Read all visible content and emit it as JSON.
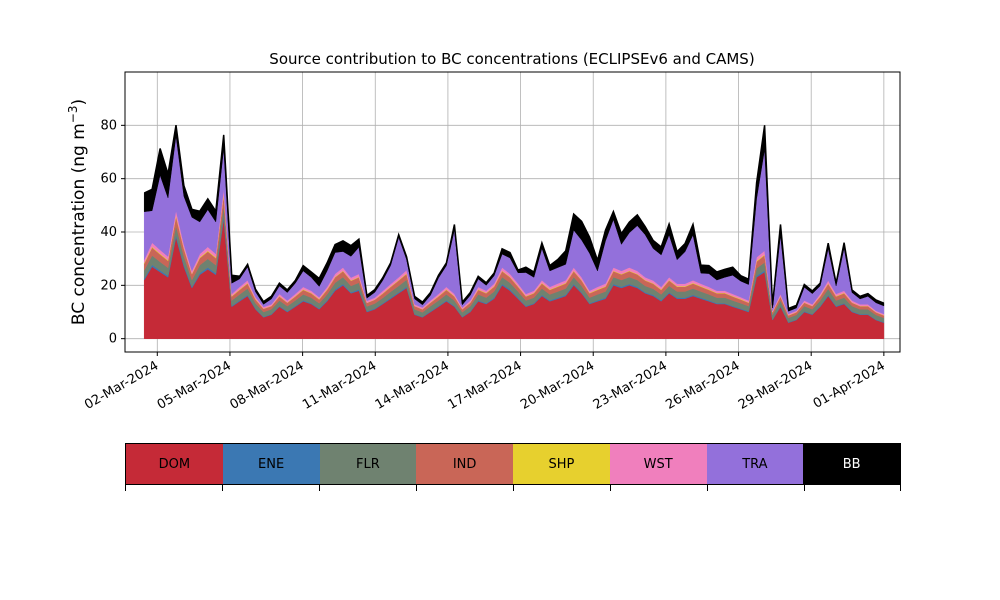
{
  "chart_data": {
    "type": "area",
    "stacked": true,
    "title": "Source contribution to BC concentrations (ECLIPSEv6 and CAMS)",
    "ylabel": "BC concentration (ng m",
    "ylabel_sup": "−3",
    "ylabel_close": ")",
    "xlabel": "",
    "xlim": [
      "2024-02-29T16:00",
      "2024-04-01T16:00"
    ],
    "ylim": [
      -5,
      100
    ],
    "yticks": [
      0,
      20,
      40,
      60,
      80
    ],
    "xticks": [
      "02-Mar-2024",
      "05-Mar-2024",
      "08-Mar-2024",
      "11-Mar-2024",
      "14-Mar-2024",
      "17-Mar-2024",
      "20-Mar-2024",
      "23-Mar-2024",
      "26-Mar-2024",
      "29-Mar-2024",
      "01-Apr-2024"
    ],
    "xtick_dates": [
      "2024-03-02",
      "2024-03-05",
      "2024-03-08",
      "2024-03-11",
      "2024-03-14",
      "2024-03-17",
      "2024-03-20",
      "2024-03-23",
      "2024-03-26",
      "2024-03-29",
      "2024-04-01"
    ],
    "grid": true,
    "series_order": [
      "DOM",
      "ENE",
      "FLR",
      "IND",
      "SHP",
      "WST",
      "TRA",
      "BB"
    ],
    "colors": {
      "DOM": "#c52a37",
      "ENE": "#3b78b3",
      "FLR": "#6f8270",
      "IND": "#c96657",
      "SHP": "#e7d02e",
      "WST": "#f07fbd",
      "TRA": "#9370db",
      "BB": "#000000"
    },
    "series": [
      {
        "name": "DOM",
        "values": [
          22,
          27,
          25,
          23,
          38,
          27,
          19,
          24,
          26,
          24,
          45,
          12,
          14,
          16,
          11,
          8,
          9,
          12,
          10,
          12,
          14,
          13,
          11,
          14,
          18,
          20,
          17,
          18,
          10,
          11,
          13,
          15,
          17,
          19,
          9,
          8,
          10,
          12,
          14,
          12,
          8,
          10,
          14,
          13,
          15,
          20,
          18,
          15,
          12,
          13,
          16,
          14,
          15,
          16,
          20,
          17,
          13,
          14,
          15,
          20,
          19,
          20,
          19,
          17,
          16,
          14,
          17,
          15,
          15,
          16,
          15,
          14,
          13,
          13,
          12,
          11,
          10,
          23,
          25,
          7,
          12,
          6,
          7,
          10,
          9,
          12,
          16,
          12,
          13,
          10,
          9,
          9,
          7,
          6
        ]
      },
      {
        "name": "ENE",
        "values": [
          0.6,
          0.7,
          0.6,
          0.6,
          0.9,
          0.7,
          0.5,
          0.6,
          0.7,
          0.6,
          1.0,
          0.3,
          0.4,
          0.4,
          0.3,
          0.2,
          0.2,
          0.3,
          0.3,
          0.3,
          0.4,
          0.3,
          0.3,
          0.4,
          0.5,
          0.5,
          0.4,
          0.5,
          0.3,
          0.3,
          0.3,
          0.4,
          0.4,
          0.5,
          0.2,
          0.2,
          0.3,
          0.3,
          0.4,
          0.3,
          0.2,
          0.3,
          0.4,
          0.3,
          0.4,
          0.5,
          0.5,
          0.4,
          0.3,
          0.3,
          0.4,
          0.4,
          0.4,
          0.4,
          0.5,
          0.4,
          0.3,
          0.4,
          0.4,
          0.5,
          0.5,
          0.5,
          0.5,
          0.4,
          0.4,
          0.4,
          0.4,
          0.4,
          0.4,
          0.4,
          0.4,
          0.4,
          0.3,
          0.3,
          0.3,
          0.3,
          0.3,
          0.6,
          0.6,
          0.2,
          0.3,
          0.2,
          0.2,
          0.3,
          0.2,
          0.3,
          0.4,
          0.3,
          0.3,
          0.3,
          0.2,
          0.2,
          0.2,
          0.2
        ]
      },
      {
        "name": "FLR",
        "values": [
          3,
          3.5,
          3.2,
          3,
          3.5,
          3.2,
          2.5,
          3,
          3.2,
          3,
          4,
          2,
          2.2,
          2.4,
          2,
          1.8,
          1.8,
          2,
          1.9,
          2,
          2.2,
          2.1,
          2,
          2.2,
          2.5,
          2.6,
          2.4,
          2.5,
          1.8,
          1.9,
          2,
          2.2,
          2.4,
          2.6,
          1.8,
          1.7,
          1.9,
          2,
          2.2,
          2,
          1.7,
          1.9,
          2.2,
          2.1,
          2.3,
          2.6,
          2.5,
          2.3,
          2,
          2.1,
          2.4,
          2.2,
          2.3,
          2.4,
          2.6,
          2.4,
          2.1,
          2.2,
          2.3,
          2.6,
          2.5,
          2.6,
          2.5,
          2.4,
          2.3,
          2.2,
          2.4,
          2.3,
          2.3,
          2.4,
          2.3,
          2.2,
          2.1,
          2.1,
          2,
          2,
          1.9,
          2.8,
          3,
          1.7,
          2,
          1.6,
          1.7,
          1.9,
          1.8,
          2,
          2.3,
          2,
          2.1,
          1.9,
          1.8,
          1.8,
          1.7,
          1.6
        ]
      },
      {
        "name": "IND",
        "values": [
          2.5,
          3,
          2.8,
          2.6,
          3.5,
          2.8,
          2.2,
          2.6,
          2.8,
          2.6,
          4,
          1.5,
          1.7,
          1.9,
          1.4,
          1.2,
          1.2,
          1.5,
          1.3,
          1.5,
          1.7,
          1.6,
          1.4,
          1.7,
          2,
          2.2,
          1.9,
          2,
          1.3,
          1.4,
          1.6,
          1.8,
          2,
          2.2,
          1.2,
          1.1,
          1.3,
          1.5,
          1.7,
          1.5,
          1.1,
          1.3,
          1.7,
          1.6,
          1.8,
          2.2,
          2,
          1.8,
          1.5,
          1.6,
          1.9,
          1.7,
          1.8,
          1.9,
          2.2,
          2,
          1.6,
          1.7,
          1.8,
          2.2,
          2.1,
          2.2,
          2.1,
          2,
          1.9,
          1.7,
          2,
          1.8,
          1.8,
          1.9,
          1.8,
          1.7,
          1.6,
          1.6,
          1.5,
          1.4,
          1.3,
          2.5,
          2.7,
          1,
          1.5,
          0.9,
          1,
          1.3,
          1.2,
          1.5,
          1.9,
          1.5,
          1.6,
          1.3,
          1.2,
          1.2,
          1,
          0.9
        ]
      },
      {
        "name": "SHP",
        "values": [
          0.3,
          0.3,
          0.3,
          0.3,
          0.4,
          0.3,
          0.2,
          0.3,
          0.3,
          0.3,
          0.4,
          0.2,
          0.2,
          0.2,
          0.2,
          0.1,
          0.1,
          0.2,
          0.1,
          0.2,
          0.2,
          0.2,
          0.2,
          0.2,
          0.2,
          0.2,
          0.2,
          0.2,
          0.1,
          0.1,
          0.2,
          0.2,
          0.2,
          0.2,
          0.1,
          0.1,
          0.1,
          0.2,
          0.2,
          0.2,
          0.1,
          0.1,
          0.2,
          0.2,
          0.2,
          0.2,
          0.2,
          0.2,
          0.2,
          0.2,
          0.2,
          0.2,
          0.2,
          0.2,
          0.2,
          0.2,
          0.2,
          0.2,
          0.2,
          0.2,
          0.2,
          0.2,
          0.2,
          0.2,
          0.2,
          0.2,
          0.2,
          0.2,
          0.2,
          0.2,
          0.2,
          0.2,
          0.2,
          0.2,
          0.2,
          0.2,
          0.1,
          0.3,
          0.3,
          0.1,
          0.2,
          0.1,
          0.1,
          0.1,
          0.1,
          0.2,
          0.2,
          0.2,
          0.2,
          0.1,
          0.1,
          0.1,
          0.1,
          0.1
        ]
      },
      {
        "name": "WST",
        "values": [
          1.2,
          1.5,
          1.4,
          1.3,
          1.8,
          1.4,
          1.1,
          1.3,
          1.4,
          1.3,
          2,
          0.8,
          0.9,
          1,
          0.7,
          0.6,
          0.6,
          0.8,
          0.7,
          0.8,
          0.9,
          0.8,
          0.7,
          0.9,
          1.1,
          1.2,
          1,
          1.1,
          0.7,
          0.7,
          0.8,
          0.9,
          1,
          1.2,
          0.6,
          0.6,
          0.7,
          0.8,
          0.9,
          0.8,
          0.6,
          0.7,
          0.9,
          0.8,
          0.9,
          1.2,
          1.1,
          1,
          0.8,
          0.8,
          1,
          0.9,
          1,
          1,
          1.2,
          1,
          0.8,
          0.9,
          1,
          1.2,
          1.1,
          1.2,
          1.1,
          1,
          1,
          0.9,
          1,
          0.9,
          0.9,
          1,
          0.9,
          0.9,
          0.8,
          0.8,
          0.8,
          0.7,
          0.7,
          1.3,
          1.4,
          0.5,
          0.8,
          0.5,
          0.5,
          0.7,
          0.6,
          0.8,
          1,
          0.8,
          0.8,
          0.7,
          0.6,
          0.6,
          0.5,
          0.5
        ]
      },
      {
        "name": "TRA",
        "values": [
          18,
          12,
          28,
          22,
          28,
          18,
          20,
          12,
          14,
          12,
          15,
          4,
          3,
          5,
          2,
          1,
          2,
          3,
          3,
          4,
          6,
          5,
          4,
          6,
          8,
          6,
          8,
          10,
          1,
          2,
          4,
          7,
          15,
          4,
          2,
          1,
          2,
          6,
          8,
          24,
          1,
          2,
          3,
          2,
          3,
          5,
          6,
          4,
          8,
          5,
          12,
          6,
          6,
          6,
          14,
          14,
          14,
          6,
          16,
          18,
          10,
          13,
          17,
          16,
          12,
          12,
          16,
          9,
          12,
          17,
          4,
          5,
          4,
          5,
          7,
          6,
          6,
          22,
          38,
          1,
          22,
          1,
          1,
          5,
          4,
          3,
          12,
          3,
          16,
          3,
          2,
          3,
          3,
          3
        ]
      },
      {
        "name": "BB",
        "values": [
          7,
          8,
          10,
          9,
          4,
          4,
          3,
          4,
          4,
          4,
          5,
          3,
          1,
          1,
          1,
          1,
          1,
          1,
          1,
          1,
          2,
          2,
          3,
          3,
          3,
          4,
          4,
          3,
          1,
          1,
          1,
          1,
          1,
          1,
          1,
          1,
          1,
          1,
          1,
          2,
          1,
          1,
          1,
          1,
          1,
          2,
          2,
          1,
          2,
          2,
          2,
          2,
          3,
          5,
          6,
          7,
          6,
          4,
          4,
          3,
          4,
          4,
          4,
          3,
          3,
          3,
          4,
          3,
          3,
          4,
          3,
          3,
          3,
          3,
          3,
          2,
          2,
          6,
          9,
          1,
          4,
          1,
          1,
          1,
          1,
          1,
          2,
          1,
          2,
          1,
          1,
          1,
          1,
          1
        ]
      }
    ],
    "legend": {
      "placement": "bottom",
      "labels": [
        "DOM",
        "ENE",
        "FLR",
        "IND",
        "SHP",
        "WST",
        "TRA",
        "BB"
      ]
    }
  }
}
